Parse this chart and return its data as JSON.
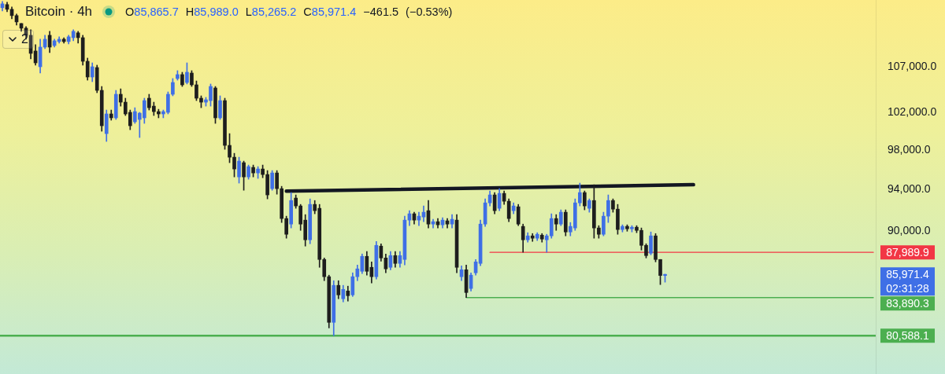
{
  "chart_data": {
    "type": "candlestick",
    "title": "Bitcoin · 4h",
    "subtitle": "O85,865.7 H85,989.0 L85,265.2 C85,971.4 −461.5 (−0.53%)",
    "categories": [
      null,
      null,
      null,
      null,
      null,
      null,
      null,
      null,
      null,
      null,
      null,
      null,
      null,
      null,
      null,
      null,
      null,
      null,
      null,
      null,
      null,
      null,
      null,
      null,
      null,
      null,
      null,
      null,
      null,
      null,
      null,
      null,
      null,
      null,
      null,
      null,
      null,
      null,
      null,
      null,
      null,
      null,
      null,
      null,
      null,
      null,
      null,
      null,
      null,
      null,
      null,
      null,
      null,
      null,
      null,
      null,
      null,
      null,
      null,
      null,
      null,
      null,
      null,
      null,
      null,
      null,
      null,
      null,
      null,
      null,
      null,
      null,
      null,
      null,
      null,
      null,
      null,
      null,
      null,
      null,
      null,
      null,
      null,
      null,
      null,
      null,
      null,
      null,
      null,
      null,
      null,
      null,
      null,
      null,
      null,
      null,
      null,
      null,
      null,
      null,
      null,
      null,
      null,
      null,
      null,
      null,
      null,
      null,
      null,
      null,
      null,
      null,
      null,
      null,
      null,
      null,
      null,
      null,
      null,
      null,
      null,
      null,
      null,
      null,
      null,
      null,
      null,
      null,
      null,
      null,
      null,
      null,
      null,
      null,
      null,
      null,
      null,
      null,
      null,
      null,
      null,
      null,
      null,
      null,
      null,
      null,
      null,
      null,
      null,
      null,
      null,
      null,
      null,
      null,
      null,
      null,
      null,
      null,
      null,
      null,
      null,
      null,
      null,
      null,
      null,
      null,
      null,
      null,
      null,
      null,
      null,
      null,
      null,
      null,
      null,
      null,
      null,
      null,
      null,
      null,
      null,
      null,
      null,
      null,
      null
    ],
    "series": [
      {
        "ohlc": [
          [
            113870,
            114620,
            113490,
            114340
          ],
          [
            114250,
            114530,
            113400,
            113680
          ],
          [
            113680,
            113960,
            112550,
            112930
          ],
          [
            112930,
            113120,
            111800,
            112180
          ],
          [
            111990,
            111990,
            111070,
            111440
          ],
          [
            111440,
            111620,
            110150,
            110610
          ],
          [
            110610,
            111250,
            107890,
            108520
          ],
          [
            108790,
            109520,
            107180,
            107440
          ],
          [
            107000,
            110150,
            106300,
            109240
          ],
          [
            109240,
            110610,
            109060,
            110150
          ],
          [
            110610,
            111070,
            108610,
            109240
          ],
          [
            109420,
            110150,
            109240,
            109970
          ],
          [
            109880,
            110430,
            109700,
            110150
          ],
          [
            110150,
            110330,
            109700,
            109880
          ],
          [
            109880,
            110610,
            109610,
            110430
          ],
          [
            110330,
            111250,
            109970,
            111070
          ],
          [
            110890,
            111070,
            109700,
            110330
          ],
          [
            110330,
            110610,
            107180,
            107620
          ],
          [
            107620,
            107980,
            105500,
            105850
          ],
          [
            105850,
            107440,
            105330,
            107000
          ],
          [
            106910,
            107180,
            104110,
            104370
          ],
          [
            104370,
            104800,
            99970,
            100550
          ],
          [
            99720,
            102230,
            98900,
            101810
          ],
          [
            101810,
            102230,
            101140,
            101390
          ],
          [
            101390,
            104370,
            101220,
            103940
          ],
          [
            103940,
            104540,
            102650,
            103080
          ],
          [
            103080,
            103510,
            101640,
            101810
          ],
          [
            101980,
            102230,
            100130,
            100550
          ],
          [
            100970,
            102480,
            100800,
            102060
          ],
          [
            101220,
            101980,
            99310,
            101890
          ],
          [
            101390,
            103510,
            100800,
            103250
          ],
          [
            103510,
            103940,
            102230,
            102480
          ],
          [
            102650,
            103080,
            101640,
            102060
          ],
          [
            102060,
            102310,
            101390,
            101810
          ],
          [
            101810,
            102230,
            101390,
            102060
          ],
          [
            101980,
            104200,
            101810,
            103940
          ],
          [
            103940,
            105680,
            103770,
            105240
          ],
          [
            105680,
            106560,
            105500,
            106120
          ],
          [
            106120,
            106380,
            104800,
            104980
          ],
          [
            105240,
            107440,
            105070,
            106380
          ],
          [
            106290,
            106560,
            104800,
            104980
          ],
          [
            104980,
            105410,
            103250,
            103510
          ],
          [
            103510,
            103770,
            102480,
            103080
          ],
          [
            103080,
            103600,
            102650,
            103340
          ],
          [
            103250,
            105070,
            102650,
            104800
          ],
          [
            104630,
            104800,
            100800,
            101390
          ],
          [
            101390,
            103770,
            101220,
            103250
          ],
          [
            103250,
            103510,
            98080,
            98490
          ],
          [
            98490,
            99720,
            96710,
            97270
          ],
          [
            97270,
            97670,
            95270,
            96070
          ],
          [
            95270,
            97270,
            94650,
            96870
          ],
          [
            96710,
            96870,
            93940,
            95270
          ],
          [
            95270,
            96470,
            95040,
            96310
          ],
          [
            96230,
            96470,
            95270,
            95670
          ],
          [
            95670,
            96310,
            95120,
            96070
          ],
          [
            96070,
            96470,
            95190,
            95510
          ],
          [
            95510,
            95910,
            93090,
            93480
          ],
          [
            94100,
            95910,
            93940,
            95670
          ],
          [
            95670,
            95910,
            93550,
            94100
          ],
          [
            94100,
            94330,
            90800,
            91180
          ],
          [
            91180,
            91410,
            89310,
            89680
          ],
          [
            90650,
            93710,
            90280,
            92930
          ],
          [
            93170,
            93480,
            92170,
            92400
          ],
          [
            92400,
            92550,
            90050,
            90650
          ],
          [
            91030,
            91560,
            88570,
            89160
          ],
          [
            89160,
            93090,
            88790,
            92550
          ],
          [
            92550,
            92930,
            91640,
            91940
          ],
          [
            92170,
            92550,
            86610,
            87330
          ],
          [
            87330,
            87470,
            85400,
            85760
          ],
          [
            85760,
            85900,
            81250,
            81730
          ],
          [
            81730,
            85400,
            80588.1,
            84980
          ],
          [
            84980,
            85400,
            83790,
            84130
          ],
          [
            83790,
            84980,
            83510,
            84620
          ],
          [
            84480,
            84910,
            83580,
            84060
          ],
          [
            84130,
            86110,
            83990,
            85760
          ],
          [
            85760,
            86820,
            85400,
            86470
          ],
          [
            86250,
            87840,
            86040,
            87620
          ],
          [
            87620,
            88060,
            85900,
            86250
          ],
          [
            86610,
            87110,
            85190,
            85760
          ],
          [
            85760,
            89010,
            85540,
            88640
          ],
          [
            88570,
            88790,
            87180,
            87470
          ],
          [
            87470,
            87840,
            86110,
            86470
          ],
          [
            86610,
            88060,
            86390,
            87690
          ],
          [
            87690,
            88060,
            86610,
            86970
          ],
          [
            86970,
            88060,
            86610,
            87690
          ],
          [
            87330,
            91410,
            86830,
            91030
          ],
          [
            91030,
            91940,
            90500,
            91640
          ],
          [
            91640,
            91790,
            90650,
            91030
          ],
          [
            91030,
            91790,
            90500,
            91410
          ],
          [
            91330,
            92400,
            90880,
            91790
          ],
          [
            91940,
            92930,
            90280,
            90650
          ],
          [
            90650,
            91110,
            90280,
            90880
          ],
          [
            90880,
            91180,
            90280,
            90580
          ],
          [
            90580,
            91260,
            90280,
            91030
          ],
          [
            90960,
            91180,
            90280,
            90650
          ],
          [
            90650,
            91560,
            90280,
            91110
          ],
          [
            91030,
            91560,
            86110,
            86610
          ],
          [
            85760,
            86750,
            85400,
            86390
          ],
          [
            86390,
            86820,
            83890.3,
            84340
          ],
          [
            84700,
            86110,
            84480,
            85900
          ],
          [
            86110,
            87330,
            85900,
            87110
          ],
          [
            86970,
            91030,
            86750,
            90650
          ],
          [
            90650,
            93090,
            90430,
            92700
          ],
          [
            92700,
            93870,
            92400,
            93480
          ],
          [
            93480,
            93710,
            91640,
            91940
          ],
          [
            92170,
            94100,
            91940,
            93630
          ],
          [
            93630,
            93870,
            92550,
            92860
          ],
          [
            92860,
            93090,
            90880,
            91180
          ],
          [
            91940,
            92700,
            91640,
            92400
          ],
          [
            92320,
            92550,
            90500,
            90650
          ],
          [
            90430,
            90650,
            88000,
            89160
          ],
          [
            89160,
            89830,
            88940,
            89530
          ],
          [
            89530,
            89750,
            89010,
            89310
          ],
          [
            89310,
            89830,
            89090,
            89680
          ],
          [
            89600,
            89750,
            88940,
            89230
          ],
          [
            89160,
            89680,
            88000,
            89530
          ],
          [
            89530,
            91640,
            89310,
            91180
          ],
          [
            91180,
            91560,
            90050,
            90650
          ],
          [
            90650,
            92020,
            90500,
            91790
          ],
          [
            91790,
            92020,
            89530,
            89900
          ],
          [
            89900,
            90800,
            89530,
            90430
          ],
          [
            90280,
            93090,
            90050,
            92700
          ],
          [
            92700,
            94650,
            92400,
            93710
          ],
          [
            93710,
            93870,
            92020,
            92400
          ],
          [
            92170,
            93090,
            91790,
            92930
          ],
          [
            92930,
            94490,
            89310,
            90280
          ],
          [
            90280,
            90500,
            89310,
            89680
          ],
          [
            89680,
            91790,
            89530,
            91410
          ],
          [
            91410,
            93480,
            90800,
            92930
          ],
          [
            92930,
            93090,
            91790,
            92090
          ],
          [
            92090,
            92550,
            89680,
            90130
          ],
          [
            90130,
            90580,
            89900,
            90430
          ],
          [
            90430,
            90580,
            89970,
            90200
          ],
          [
            90200,
            90500,
            89900,
            90350
          ],
          [
            90350,
            90500,
            89830,
            90050
          ],
          [
            90050,
            90280,
            88200,
            88640
          ],
          [
            88640,
            88790,
            87470,
            87690
          ],
          [
            87910,
            89900,
            87760,
            89530
          ],
          [
            89530,
            89750,
            87110,
            87330
          ],
          [
            87330,
            87330,
            85050,
            85870
          ],
          [
            85865.7,
            85989.0,
            85265.2,
            85971.4
          ],
          null,
          null,
          null,
          null,
          null,
          null,
          null,
          null,
          null,
          null,
          null,
          null,
          null,
          null,
          null,
          null,
          null,
          null,
          null,
          null,
          null,
          null,
          null,
          null,
          null,
          null,
          null,
          null,
          null,
          null,
          null,
          null,
          null,
          null,
          null,
          null,
          null,
          null,
          null,
          null,
          null,
          null,
          null,
          null
        ],
        "colors": [
          "#3f6fe6",
          "#1e1e1e",
          "#1e1e1e",
          "#1e1e1e",
          "#1e1e1e",
          "#1e1e1e",
          "#1e1e1e",
          "#1e1e1e",
          "#3f6fe6",
          "#3f6fe6",
          "#1e1e1e",
          "#3f6fe6",
          "#3f6fe6",
          "#1e1e1e",
          "#3f6fe6",
          "#3f6fe6",
          "#1e1e1e",
          "#1e1e1e",
          "#1e1e1e",
          "#3f6fe6",
          "#1e1e1e",
          "#1e1e1e",
          "#3f6fe6",
          "#1e1e1e",
          "#3f6fe6",
          "#1e1e1e",
          "#1e1e1e",
          "#1e1e1e",
          "#3f6fe6",
          "#3f6fe6",
          "#3f6fe6",
          "#1e1e1e",
          "#1e1e1e",
          "#1e1e1e",
          "#3f6fe6",
          "#3f6fe6",
          "#3f6fe6",
          "#3f6fe6",
          "#1e1e1e",
          "#3f6fe6",
          "#1e1e1e",
          "#1e1e1e",
          "#1e1e1e",
          "#3f6fe6",
          "#3f6fe6",
          "#1e1e1e",
          "#3f6fe6",
          "#1e1e1e",
          "#1e1e1e",
          "#1e1e1e",
          "#3f6fe6",
          "#1e1e1e",
          "#3f6fe6",
          "#1e1e1e",
          "#3f6fe6",
          "#1e1e1e",
          "#1e1e1e",
          "#3f6fe6",
          "#1e1e1e",
          "#1e1e1e",
          "#1e1e1e",
          "#3f6fe6",
          "#1e1e1e",
          "#1e1e1e",
          "#1e1e1e",
          "#3f6fe6",
          "#1e1e1e",
          "#1e1e1e",
          "#1e1e1e",
          "#1e1e1e",
          "#3f6fe6",
          "#1e1e1e",
          "#3f6fe6",
          "#1e1e1e",
          "#3f6fe6",
          "#3f6fe6",
          "#3f6fe6",
          "#1e1e1e",
          "#1e1e1e",
          "#3f6fe6",
          "#1e1e1e",
          "#1e1e1e",
          "#3f6fe6",
          "#1e1e1e",
          "#3f6fe6",
          "#3f6fe6",
          "#3f6fe6",
          "#1e1e1e",
          "#3f6fe6",
          "#3f6fe6",
          "#1e1e1e",
          "#3f6fe6",
          "#1e1e1e",
          "#3f6fe6",
          "#1e1e1e",
          "#3f6fe6",
          "#1e1e1e",
          "#3f6fe6",
          "#1e1e1e",
          "#3f6fe6",
          "#3f6fe6",
          "#3f6fe6",
          "#3f6fe6",
          "#3f6fe6",
          "#1e1e1e",
          "#3f6fe6",
          "#1e1e1e",
          "#1e1e1e",
          "#3f6fe6",
          "#1e1e1e",
          "#1e1e1e",
          "#3f6fe6",
          "#1e1e1e",
          "#3f6fe6",
          "#1e1e1e",
          "#3f6fe6",
          "#3f6fe6",
          "#1e1e1e",
          "#3f6fe6",
          "#1e1e1e",
          "#3f6fe6",
          "#3f6fe6",
          "#3f6fe6",
          "#1e1e1e",
          "#3f6fe6",
          "#1e1e1e",
          "#1e1e1e",
          "#3f6fe6",
          "#3f6fe6",
          "#1e1e1e",
          "#1e1e1e",
          "#3f6fe6",
          "#1e1e1e",
          "#3f6fe6",
          "#1e1e1e",
          "#1e1e1e",
          "#1e1e1e",
          "#3f6fe6",
          "#1e1e1e",
          "#1e1e1e",
          "#3f6fe6",
          null,
          null,
          null,
          null,
          null,
          null,
          null,
          null,
          null,
          null,
          null,
          null,
          null,
          null,
          null,
          null,
          null,
          null,
          null,
          null,
          null,
          null,
          null,
          null,
          null,
          null,
          null,
          null,
          null,
          null,
          null,
          null,
          null,
          null,
          null,
          null,
          null,
          null,
          null,
          null,
          null,
          null,
          null,
          null
        ],
        "value_labels": [
          null,
          null,
          null,
          null,
          null,
          null,
          null,
          null,
          null,
          null,
          null,
          null,
          null,
          null,
          null,
          null,
          null,
          null,
          null,
          null,
          null,
          null,
          null,
          null,
          null,
          null,
          null,
          null,
          null,
          null,
          null,
          null,
          null,
          null,
          null,
          null,
          null,
          null,
          null,
          null,
          null,
          null,
          null,
          null,
          null,
          null,
          null,
          null,
          null,
          null,
          null,
          null,
          null,
          null,
          null,
          null,
          null,
          null,
          null,
          null,
          null,
          null,
          null,
          null,
          null,
          null,
          null,
          null,
          null,
          null,
          null,
          null,
          null,
          null,
          null,
          null,
          null,
          null,
          null,
          null,
          null,
          null,
          null,
          null,
          null,
          null,
          null,
          null,
          null,
          null,
          null,
          null,
          null,
          null,
          null,
          null,
          null,
          null,
          null,
          null,
          null,
          null,
          null,
          null,
          null,
          null,
          null,
          null,
          null,
          null,
          null,
          null,
          null,
          null,
          null,
          null,
          null,
          null,
          null,
          null,
          null,
          null,
          null,
          null,
          null,
          null,
          null,
          null,
          null,
          null,
          null,
          null,
          null,
          null,
          null,
          null,
          null,
          null,
          null,
          null,
          "85,971.4",
          null,
          null,
          null,
          null,
          null,
          null,
          null,
          null,
          null,
          null,
          null,
          null,
          null,
          null,
          null,
          null,
          null,
          null,
          null,
          null,
          null,
          null,
          null,
          null,
          null,
          null,
          null,
          null,
          null,
          null,
          null,
          null,
          null,
          null,
          null,
          null,
          null,
          null,
          null,
          null,
          null,
          null,
          null,
          null
        ]
      },
      {
        "type": "line",
        "color": "#131722",
        "values": [
          null,
          null,
          null,
          null,
          null,
          null,
          null,
          null,
          null,
          null,
          null,
          null,
          null,
          null,
          null,
          null,
          null,
          null,
          null,
          null,
          null,
          null,
          null,
          null,
          null,
          null,
          null,
          null,
          null,
          null,
          null,
          null,
          null,
          null,
          null,
          null,
          null,
          null,
          null,
          null,
          null,
          null,
          null,
          null,
          null,
          null,
          null,
          null,
          null,
          null,
          null,
          null,
          null,
          null,
          null,
          null,
          null,
          null,
          null,
          null,
          93860,
          null,
          null,
          null,
          null,
          null,
          null,
          null,
          null,
          null,
          null,
          null,
          null,
          null,
          null,
          null,
          null,
          null,
          null,
          null,
          null,
          null,
          null,
          null,
          null,
          null,
          null,
          null,
          null,
          null,
          null,
          null,
          null,
          null,
          null,
          null,
          null,
          null,
          null,
          null,
          null,
          null,
          null,
          null,
          null,
          null,
          null,
          null,
          null,
          null,
          null,
          null,
          null,
          null,
          null,
          null,
          null,
          null,
          null,
          null,
          null,
          null,
          null,
          null,
          null,
          null,
          null,
          null,
          null,
          null,
          null,
          null,
          null,
          null,
          null,
          null,
          null,
          null,
          null,
          null,
          null,
          null,
          null,
          null,
          null,
          null,
          94490,
          null,
          null,
          null,
          null,
          null,
          null,
          null,
          null,
          null,
          null,
          null,
          null,
          null,
          null,
          null,
          null,
          null,
          null,
          null,
          null,
          null,
          null,
          null,
          null,
          null,
          null,
          null,
          null,
          null,
          null,
          null,
          null,
          null,
          null,
          null,
          null,
          null,
          null
        ]
      },
      {
        "type": "line",
        "name": "87,989.9",
        "color": "#f23645",
        "values": [
          null,
          null,
          null,
          null,
          null,
          null,
          null,
          null,
          null,
          null,
          null,
          null,
          null,
          null,
          null,
          null,
          null,
          null,
          null,
          null,
          null,
          null,
          null,
          null,
          null,
          null,
          null,
          null,
          null,
          null,
          null,
          null,
          null,
          null,
          null,
          null,
          null,
          null,
          null,
          null,
          null,
          null,
          null,
          null,
          null,
          null,
          null,
          null,
          null,
          null,
          null,
          null,
          null,
          null,
          null,
          null,
          null,
          null,
          null,
          null,
          null,
          null,
          null,
          null,
          null,
          null,
          null,
          null,
          null,
          null,
          null,
          null,
          null,
          null,
          null,
          null,
          null,
          null,
          null,
          null,
          null,
          null,
          null,
          null,
          null,
          null,
          null,
          null,
          null,
          null,
          null,
          null,
          null,
          null,
          null,
          null,
          null,
          null,
          null,
          null,
          null,
          null,
          null,
          87989.9,
          null,
          null,
          null,
          null,
          null,
          null,
          null,
          null,
          null,
          null,
          null,
          null,
          null,
          null,
          null,
          null,
          null,
          null,
          null,
          null,
          null,
          null,
          null,
          null,
          null,
          null,
          null,
          null,
          null,
          null,
          null,
          null,
          null,
          null,
          null,
          null,
          null,
          null,
          null,
          null,
          null,
          null,
          null,
          null,
          null,
          null,
          null,
          null,
          null,
          null,
          null,
          null,
          null,
          null,
          null,
          null,
          null,
          null,
          null,
          null,
          null,
          null,
          null,
          null,
          null,
          null,
          null,
          null,
          null,
          null,
          null,
          null,
          null,
          null,
          null,
          null,
          null,
          null,
          null,
          null,
          87989.9
        ]
      },
      {
        "type": "line",
        "name": "83,890.3",
        "color": "#4caf50",
        "values": [
          null,
          null,
          null,
          null,
          null,
          null,
          null,
          null,
          null,
          null,
          null,
          null,
          null,
          null,
          null,
          null,
          null,
          null,
          null,
          null,
          null,
          null,
          null,
          null,
          null,
          null,
          null,
          null,
          null,
          null,
          null,
          null,
          null,
          null,
          null,
          null,
          null,
          null,
          null,
          null,
          null,
          null,
          null,
          null,
          null,
          null,
          null,
          null,
          null,
          null,
          null,
          null,
          null,
          null,
          null,
          null,
          null,
          null,
          null,
          null,
          null,
          null,
          null,
          null,
          null,
          null,
          null,
          null,
          null,
          null,
          null,
          null,
          null,
          null,
          null,
          null,
          null,
          null,
          null,
          null,
          null,
          null,
          null,
          null,
          null,
          null,
          null,
          null,
          null,
          null,
          null,
          null,
          null,
          null,
          null,
          null,
          null,
          null,
          83890.3,
          null,
          null,
          null,
          null,
          null,
          null,
          null,
          null,
          null,
          null,
          null,
          null,
          null,
          null,
          null,
          null,
          null,
          null,
          null,
          null,
          null,
          null,
          null,
          null,
          null,
          null,
          null,
          null,
          null,
          null,
          null,
          null,
          null,
          null,
          null,
          null,
          null,
          null,
          null,
          null,
          null,
          null,
          null,
          null,
          null,
          null,
          null,
          null,
          null,
          null,
          null,
          null,
          null,
          null,
          null,
          null,
          null,
          null,
          null,
          null,
          null,
          null,
          null,
          null,
          null,
          null,
          null,
          null,
          null,
          null,
          null,
          null,
          null,
          null,
          null,
          null,
          null,
          null,
          null,
          null,
          null,
          null,
          null,
          null,
          null,
          83890.3
        ]
      }
    ],
    "ylim": [
      77400,
      114800
    ],
    "yticks": [
      {
        "value": 107000,
        "label": "107,000.0"
      },
      {
        "value": 102000,
        "label": "102,000.0"
      },
      {
        "value": 98000,
        "label": "98,000.0"
      },
      {
        "value": 94000,
        "label": "94,000.0"
      },
      {
        "value": 90000,
        "label": "90,000.0"
      }
    ],
    "log": true,
    "tick_labels": "y",
    "ref_lines": [
      {
        "axis": "y",
        "value": 80588.1,
        "label": "80,588.1",
        "color": "#4caf50"
      }
    ],
    "annotations": [
      "2",
      "02:31:28"
    ]
  }
}
